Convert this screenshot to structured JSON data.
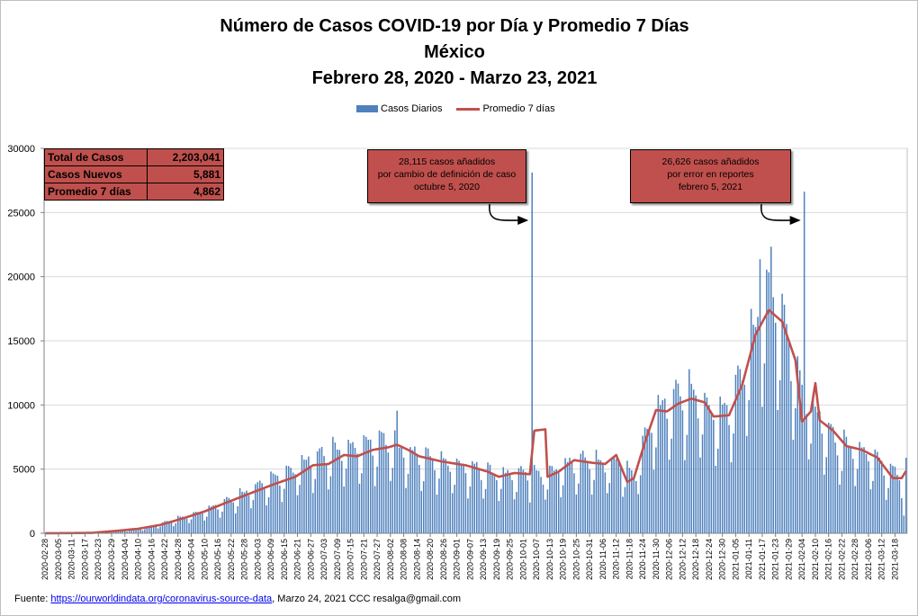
{
  "title": {
    "line1": "Número de  Casos  COVID-19 por Día y Promedio 7 Días",
    "line2": "México",
    "line3": "Febrero 28, 2020 - Marzo 23, 2021"
  },
  "legend": {
    "bars": "Casos Diarios",
    "line": "Promedio 7 días"
  },
  "stats": [
    {
      "label": "Total de Casos",
      "value": "2,203,041"
    },
    {
      "label": "Casos Nuevos",
      "value": "5,881"
    },
    {
      "label": "Promedio 7 días",
      "value": "4,862"
    }
  ],
  "annotations": [
    {
      "lines": [
        "28,115 casos  añadidos",
        "por cambio de definición de caso",
        "octubre  5, 2020"
      ]
    },
    {
      "lines": [
        "26,626 casos  añadidos",
        "por error en reportes",
        "febrero  5, 2021"
      ]
    }
  ],
  "footer": {
    "prefix": "Fuente:",
    "link": "https://ourworldindata.org/coronavirus-source-data",
    "suffix": ",  Marzo 24, 2021    CCC    resalga@gmail.com"
  },
  "colors": {
    "bars": "#4f81bd",
    "line": "#c0504d",
    "grid": "#d9d9d9"
  },
  "chart_data": {
    "type": "bar",
    "start_date": "2020-02-28",
    "end_date": "2021-03-23",
    "ylim": [
      0,
      30000
    ],
    "yticks": [
      0,
      5000,
      10000,
      15000,
      20000,
      25000,
      30000
    ],
    "grid": true,
    "legend_position": "top-center",
    "xtick_labels": [
      "2020-02-28",
      "2020-03-05",
      "2020-03-11",
      "2020-03-17",
      "2020-03-23",
      "2020-03-29",
      "2020-04-04",
      "2020-04-10",
      "2020-04-16",
      "2020-04-22",
      "2020-04-28",
      "2020-05-04",
      "2020-05-10",
      "2020-05-16",
      "2020-05-22",
      "2020-05-28",
      "2020-06-03",
      "2020-06-09",
      "2020-06-15",
      "2020-06-21",
      "2020-06-27",
      "2020-07-03",
      "2020-07-09",
      "2020-07-15",
      "2020-07-21",
      "2020-07-27",
      "2020-08-02",
      "2020-08-08",
      "2020-08-14",
      "2020-08-20",
      "2020-08-26",
      "2020-09-01",
      "2020-09-07",
      "2020-09-13",
      "2020-09-19",
      "2020-09-25",
      "2020-10-01",
      "2020-10-07",
      "2020-10-13",
      "2020-10-19",
      "2020-10-25",
      "2020-10-31",
      "2020-11-06",
      "2020-11-12",
      "2020-11-18",
      "2020-11-24",
      "2020-11-30",
      "2020-12-06",
      "2020-12-12",
      "2020-12-18",
      "2020-12-24",
      "2020-12-30",
      "2021-01-05",
      "2021-01-11",
      "2021-01-17",
      "2021-01-23",
      "2021-01-29",
      "2021-02-04",
      "2021-02-10",
      "2021-02-16",
      "2021-02-22",
      "2021-02-28",
      "2021-03-06",
      "2021-03-12",
      "2021-03-18"
    ],
    "series": [
      {
        "name": "Casos Diarios",
        "kind": "bar",
        "keypoints": [
          [
            "2020-02-28",
            0
          ],
          [
            "2020-03-15",
            10
          ],
          [
            "2020-03-25",
            60
          ],
          [
            "2020-04-05",
            250
          ],
          [
            "2020-04-15",
            480
          ],
          [
            "2020-04-25",
            1000
          ],
          [
            "2020-05-05",
            1500
          ],
          [
            "2020-05-15",
            2100
          ],
          [
            "2020-05-25",
            2900
          ],
          [
            "2020-06-05",
            3900
          ],
          [
            "2020-06-15",
            4600
          ],
          [
            "2020-06-25",
            5600
          ],
          [
            "2020-07-05",
            6300
          ],
          [
            "2020-07-15",
            6700
          ],
          [
            "2020-07-25",
            7000
          ],
          [
            "2020-08-01",
            7300
          ],
          [
            "2020-08-10",
            6300
          ],
          [
            "2020-08-20",
            5800
          ],
          [
            "2020-09-01",
            5300
          ],
          [
            "2020-09-10",
            5000
          ],
          [
            "2020-09-20",
            4600
          ],
          [
            "2020-10-01",
            4700
          ],
          [
            "2020-10-10",
            4500
          ],
          [
            "2020-10-20",
            5300
          ],
          [
            "2020-10-30",
            5700
          ],
          [
            "2020-11-08",
            5400
          ],
          [
            "2020-11-14",
            5600
          ],
          [
            "2020-11-20",
            4300
          ],
          [
            "2020-11-26",
            8000
          ],
          [
            "2020-12-02",
            9800
          ],
          [
            "2020-12-10",
            10800
          ],
          [
            "2020-12-18",
            10800
          ],
          [
            "2020-12-25",
            9500
          ],
          [
            "2021-01-01",
            9500
          ],
          [
            "2021-01-07",
            12000
          ],
          [
            "2021-01-13",
            15500
          ],
          [
            "2021-01-20",
            19000
          ],
          [
            "2021-01-25",
            17500
          ],
          [
            "2021-01-31",
            13500
          ],
          [
            "2021-02-05",
            10500
          ],
          [
            "2021-02-12",
            9000
          ],
          [
            "2021-02-20",
            7000
          ],
          [
            "2021-03-01",
            6600
          ],
          [
            "2021-03-10",
            5800
          ],
          [
            "2021-03-15",
            4800
          ],
          [
            "2021-03-23",
            4800
          ]
        ],
        "highlights": [
          [
            "2020-08-05",
            9556
          ],
          [
            "2020-10-05",
            28115
          ],
          [
            "2021-01-16",
            21366
          ],
          [
            "2021-01-21",
            22339
          ],
          [
            "2021-01-19",
            20548
          ],
          [
            "2021-01-26",
            18670
          ],
          [
            "2021-02-05",
            26626
          ],
          [
            "2021-03-22",
            1380
          ],
          [
            "2021-03-23",
            5881
          ]
        ]
      },
      {
        "name": "Promedio 7 días",
        "kind": "line",
        "keypoints": [
          [
            "2020-02-28",
            0
          ],
          [
            "2020-03-20",
            30
          ],
          [
            "2020-04-01",
            200
          ],
          [
            "2020-04-10",
            350
          ],
          [
            "2020-04-20",
            650
          ],
          [
            "2020-05-01",
            1200
          ],
          [
            "2020-05-10",
            1700
          ],
          [
            "2020-05-20",
            2400
          ],
          [
            "2020-06-01",
            3200
          ],
          [
            "2020-06-10",
            3800
          ],
          [
            "2020-06-20",
            4400
          ],
          [
            "2020-06-28",
            5300
          ],
          [
            "2020-07-05",
            5400
          ],
          [
            "2020-07-12",
            6100
          ],
          [
            "2020-07-18",
            6000
          ],
          [
            "2020-07-25",
            6500
          ],
          [
            "2020-08-01",
            6700
          ],
          [
            "2020-08-05",
            6900
          ],
          [
            "2020-08-10",
            6500
          ],
          [
            "2020-08-15",
            6000
          ],
          [
            "2020-08-25",
            5600
          ],
          [
            "2020-09-05",
            5300
          ],
          [
            "2020-09-15",
            4800
          ],
          [
            "2020-09-20",
            4400
          ],
          [
            "2020-09-27",
            4700
          ],
          [
            "2020-10-04",
            4600
          ],
          [
            "2020-10-06",
            8000
          ],
          [
            "2020-10-11",
            8100
          ],
          [
            "2020-10-12",
            4400
          ],
          [
            "2020-10-17",
            4800
          ],
          [
            "2020-10-24",
            5700
          ],
          [
            "2020-11-01",
            5500
          ],
          [
            "2020-11-07",
            5400
          ],
          [
            "2020-11-12",
            6100
          ],
          [
            "2020-11-17",
            4000
          ],
          [
            "2020-11-20",
            4300
          ],
          [
            "2020-11-25",
            7100
          ],
          [
            "2020-11-30",
            9600
          ],
          [
            "2020-12-05",
            9500
          ],
          [
            "2020-12-10",
            10100
          ],
          [
            "2020-12-16",
            10500
          ],
          [
            "2020-12-22",
            10200
          ],
          [
            "2020-12-26",
            9100
          ],
          [
            "2021-01-02",
            9200
          ],
          [
            "2021-01-08",
            11600
          ],
          [
            "2021-01-14",
            15500
          ],
          [
            "2021-01-20",
            17400
          ],
          [
            "2021-01-26",
            16500
          ],
          [
            "2021-02-01",
            13500
          ],
          [
            "2021-02-04",
            8700
          ],
          [
            "2021-02-08",
            9500
          ],
          [
            "2021-02-10",
            11700
          ],
          [
            "2021-02-12",
            8800
          ],
          [
            "2021-02-18",
            8000
          ],
          [
            "2021-02-24",
            6800
          ],
          [
            "2021-03-03",
            6500
          ],
          [
            "2021-03-10",
            5900
          ],
          [
            "2021-03-17",
            4300
          ],
          [
            "2021-03-21",
            4300
          ],
          [
            "2021-03-23",
            4862
          ]
        ]
      }
    ]
  }
}
